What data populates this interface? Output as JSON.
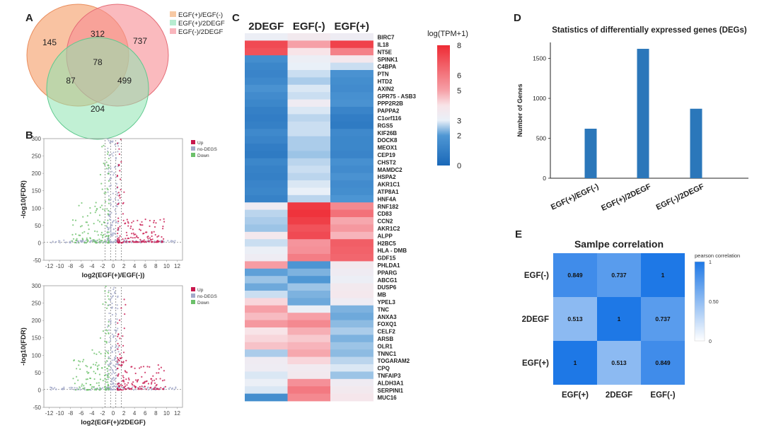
{
  "panels": {
    "a": "A",
    "b": "B",
    "c": "C",
    "d": "D",
    "e": "E"
  },
  "chart_data": [
    {
      "id": "venn",
      "type": "venn",
      "legend": [
        "EGF(+)/EGF(-)",
        "EGF(+)/2DEGF",
        "EGF(-)/2DEGF"
      ],
      "colors": [
        "#f7a97a",
        "#8ee3b0",
        "#f78c93"
      ],
      "regions": {
        "a_only": 145,
        "ab_top": 312,
        "b_only": 737,
        "center": 78,
        "left_mid": 87,
        "right_mid": 499,
        "c_only": 204
      }
    },
    {
      "id": "volcano1",
      "type": "scatter",
      "xlabel": "log2(EGF(+)/EGF(-))",
      "ylabel": "-log10(FDR)",
      "xlim": [
        -13,
        13
      ],
      "ylim": [
        -50,
        300
      ],
      "xticks": [
        -12,
        -10,
        -8,
        -6,
        -4,
        -2,
        0,
        2,
        4,
        6,
        8,
        10,
        12
      ],
      "yticks": [
        -50,
        0,
        50,
        100,
        150,
        200,
        250,
        300
      ],
      "legend": [
        "Up",
        "no-DEGS",
        "Down"
      ],
      "legend_colors": [
        "#c8174d",
        "#a3a9c9",
        "#6cc06a"
      ]
    },
    {
      "id": "volcano2",
      "type": "scatter",
      "xlabel": "log2(EGF(+)/2DEGF)",
      "ylabel": "-log10(FDR)",
      "xlim": [
        -13,
        13
      ],
      "ylim": [
        -50,
        300
      ],
      "xticks": [
        -12,
        -10,
        -8,
        -6,
        -4,
        -2,
        0,
        2,
        4,
        6,
        8,
        10,
        12
      ],
      "yticks": [
        -50,
        0,
        50,
        100,
        150,
        200,
        250,
        300
      ],
      "legend": [
        "Up",
        "no-DEGS",
        "Down"
      ],
      "legend_colors": [
        "#c8174d",
        "#a3a9c9",
        "#6cc06a"
      ]
    },
    {
      "id": "heatmap",
      "type": "heatmap",
      "columns": [
        "2DEGF",
        "EGF(-)",
        "EGF(+)"
      ],
      "colorbar_title": "log(TPM+1)",
      "colorbar_ticks": [
        0,
        2,
        3,
        5,
        6,
        8
      ],
      "range": [
        0,
        8
      ],
      "genes": [
        "BIRC7",
        "IL18",
        "NT5E",
        "SPINK1",
        "C4BPA",
        "PTN",
        "HTD2",
        "AXIN2",
        "GPR75 - ASB3",
        "PPP2R2B",
        "PAPPA2",
        "C1orf116",
        "RGS5",
        "KIF26B",
        "DOCK8",
        "MEOX1",
        "CEP19",
        "CHST2",
        "MAMDC2",
        "HSPA2",
        "AKR1C1",
        "ATP8A1",
        "HNF4A",
        "RNF182",
        "CD83",
        "CCN2",
        "AKR1C2",
        "ALPP",
        "H2BC5",
        "HLA - DMB",
        "GDF15",
        "PHLDA1",
        "PPARG",
        "ABCG1",
        "DUSP6",
        "MB",
        "YPEL3",
        "TNC",
        "ANXA3",
        "FOXQ1",
        "CELF2",
        "ARSB",
        "OLR1",
        "TNNC1",
        "TOGARAM2",
        "CPQ",
        "TNFAIP3",
        "ALDH3A1",
        "SERPINI1",
        "MUC16"
      ],
      "values": [
        [
          3.2,
          3.6,
          3.3
        ],
        [
          7.2,
          5.0,
          7.4
        ],
        [
          7.0,
          4.0,
          5.8
        ],
        [
          1.6,
          3.2,
          3.7
        ],
        [
          1.3,
          3.0,
          2.8
        ],
        [
          1.2,
          2.8,
          1.8
        ],
        [
          1.4,
          2.6,
          1.6
        ],
        [
          1.8,
          2.9,
          1.5
        ],
        [
          1.5,
          2.8,
          1.7
        ],
        [
          1.3,
          3.4,
          1.8
        ],
        [
          1.0,
          2.9,
          1.2
        ],
        [
          0.9,
          2.7,
          0.9
        ],
        [
          1.0,
          2.8,
          0.8
        ],
        [
          1.4,
          2.8,
          1.4
        ],
        [
          1.2,
          2.6,
          1.3
        ],
        [
          0.9,
          2.6,
          1.3
        ],
        [
          0.8,
          2.5,
          1.2
        ],
        [
          1.3,
          2.7,
          1.7
        ],
        [
          1.1,
          2.8,
          1.5
        ],
        [
          1.0,
          2.7,
          1.8
        ],
        [
          1.2,
          2.9,
          1.5
        ],
        [
          1.3,
          3.0,
          1.6
        ],
        [
          1.1,
          2.7,
          1.9
        ],
        [
          3.4,
          7.6,
          5.6
        ],
        [
          2.7,
          7.8,
          6.2
        ],
        [
          2.6,
          7.5,
          4.9
        ],
        [
          2.5,
          7.0,
          5.2
        ],
        [
          3.7,
          7.2,
          4.7
        ],
        [
          2.8,
          5.3,
          6.7
        ],
        [
          3.1,
          5.4,
          6.6
        ],
        [
          3.3,
          5.9,
          6.5
        ],
        [
          5.1,
          1.9,
          3.6
        ],
        [
          2.1,
          2.3,
          3.4
        ],
        [
          2.5,
          2.0,
          3.2
        ],
        [
          2.2,
          2.5,
          3.6
        ],
        [
          2.8,
          2.3,
          3.7
        ],
        [
          4.2,
          2.2,
          3.3
        ],
        [
          5.0,
          3.1,
          2.3
        ],
        [
          4.6,
          5.0,
          2.2
        ],
        [
          5.2,
          5.6,
          2.4
        ],
        [
          4.0,
          4.8,
          2.6
        ],
        [
          4.2,
          4.4,
          2.3
        ],
        [
          4.5,
          4.7,
          2.5
        ],
        [
          2.6,
          4.9,
          2.4
        ],
        [
          3.4,
          4.2,
          2.7
        ],
        [
          3.3,
          3.5,
          2.9
        ],
        [
          2.9,
          3.6,
          2.5
        ],
        [
          3.1,
          5.4,
          3.4
        ],
        [
          2.9,
          6.0,
          3.6
        ],
        [
          1.6,
          5.6,
          3.8
        ]
      ]
    },
    {
      "id": "degs",
      "type": "bar",
      "title": "Statistics of differentially expressed genes (DEGs)",
      "ylabel": "Number of Genes",
      "xlabel": "",
      "categories": [
        "EGF(+)/EGF(-)",
        "EGF(+)/2DEGF",
        "EGF(-)/2DEGF"
      ],
      "values": [
        620,
        1620,
        870
      ],
      "ylim": [
        0,
        1700
      ],
      "yticks": [
        0,
        500,
        1000,
        1500
      ],
      "bar_color": "#2b77ba"
    },
    {
      "id": "correlation",
      "type": "heatmap",
      "title": "Samlpe correlation",
      "colorbar_title": "pearson correlation",
      "colorbar_ticks": [
        "1",
        "0.50",
        "0"
      ],
      "rows": [
        "EGF(-)",
        "2DEGF",
        "EGF(+)"
      ],
      "cols": [
        "EGF(+)",
        "2DEGF",
        "EGF(-)"
      ],
      "values": [
        [
          0.849,
          0.737,
          1
        ],
        [
          0.513,
          1,
          0.737
        ],
        [
          1,
          0.513,
          0.849
        ]
      ],
      "labels": [
        [
          "0.849",
          "0.737",
          "1"
        ],
        [
          "0.513",
          "1",
          "0.737"
        ],
        [
          "1",
          "0.513",
          "0.849"
        ]
      ]
    }
  ]
}
